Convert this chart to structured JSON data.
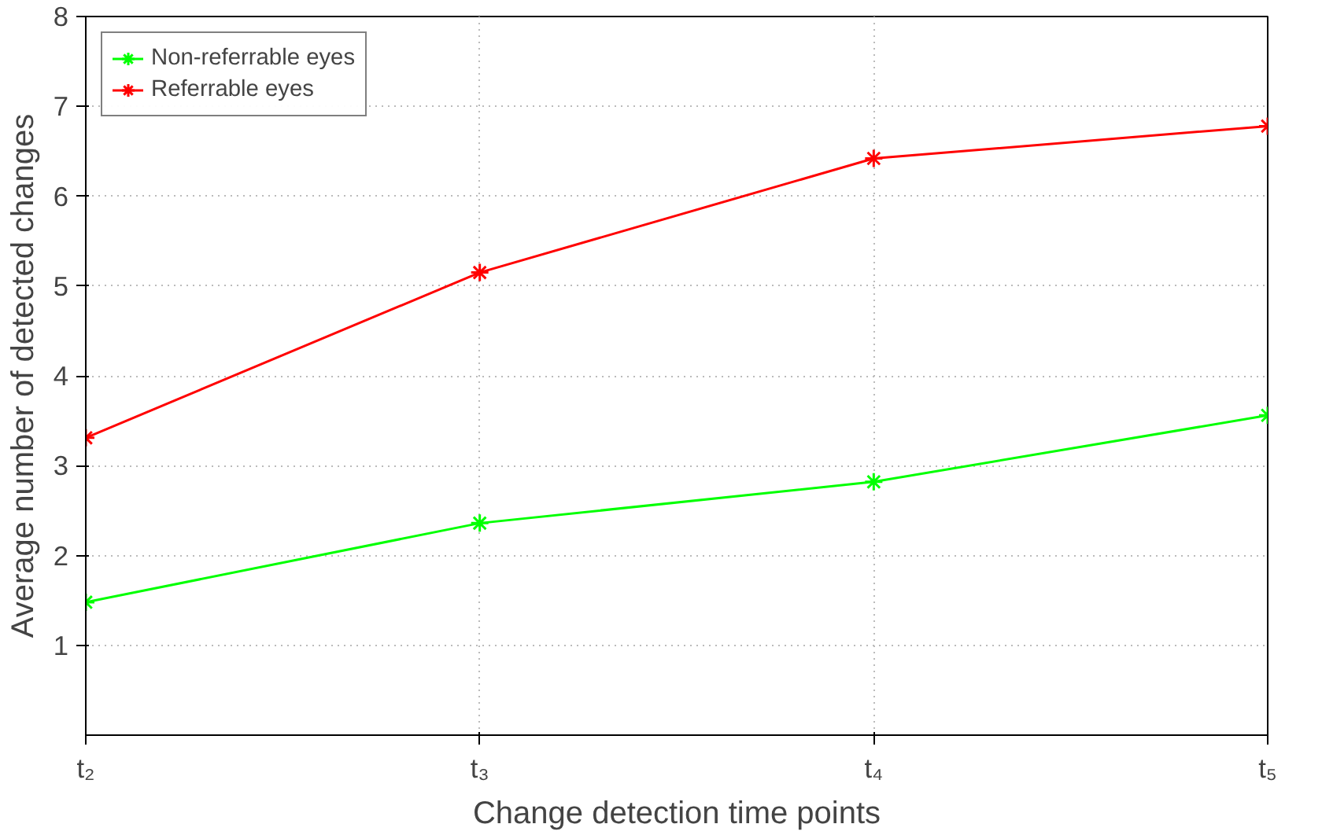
{
  "chart_data": {
    "type": "line",
    "xlabel": "Change detection time points",
    "ylabel": "Average number of detected changes",
    "categories": [
      "t₂",
      "t₃",
      "t₄",
      "t₅"
    ],
    "series": [
      {
        "name": "Non-referrable eyes",
        "color": "#00ff00",
        "values": [
          1.48,
          2.36,
          2.82,
          3.56
        ]
      },
      {
        "name": "Referrable eyes",
        "color": "#ff0000",
        "values": [
          3.31,
          5.15,
          6.42,
          6.78
        ]
      }
    ],
    "ylim": [
      0,
      8
    ],
    "yticks": [
      1,
      2,
      3,
      4,
      5,
      6,
      7,
      8
    ],
    "grid": true,
    "legend": "top left",
    "marker": "cross",
    "line_style": "solid"
  }
}
